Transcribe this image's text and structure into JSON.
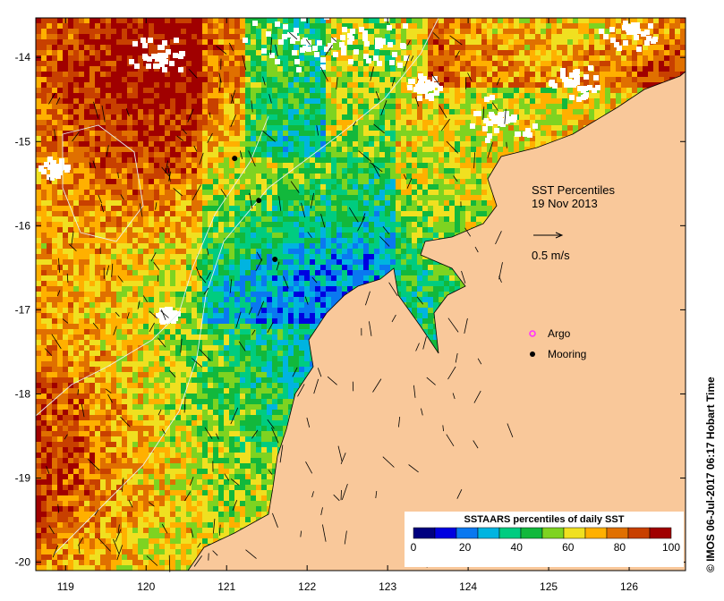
{
  "map": {
    "title_line1": "SST Percentiles",
    "title_line2": "19 Nov 2013",
    "scale_label": "0.5 m/s",
    "legend": {
      "argo_label": "Argo",
      "mooring_label": "Mooring",
      "argo_color": "#ff33ff",
      "mooring_color": "#000000"
    },
    "land_color": "#f9c89a",
    "cloud_color": "#ffffff",
    "lon_ticks": [
      "119",
      "120",
      "121",
      "122",
      "123",
      "124",
      "125",
      "126"
    ],
    "lat_ticks": [
      "-14",
      "-15",
      "-16",
      "-17",
      "-18",
      "-19",
      "-20"
    ],
    "moorings": [
      {
        "lon": 121.1,
        "lat": -15.2
      },
      {
        "lon": 121.4,
        "lat": -15.7
      },
      {
        "lon": 121.6,
        "lat": -16.4
      }
    ],
    "colorbar": {
      "title": "SSTAARS percentiles of daily SST",
      "labels": [
        "0",
        "20",
        "40",
        "60",
        "80",
        "100"
      ],
      "colors": [
        "#00007f",
        "#0000e0",
        "#0a78f0",
        "#00b4e0",
        "#00cc80",
        "#12b83c",
        "#7ed321",
        "#f0e020",
        "#ffb000",
        "#e07000",
        "#c84000",
        "#a00000"
      ]
    },
    "credit": "© IMOS 06-Jul-2017 06:17 Hobart Time"
  }
}
